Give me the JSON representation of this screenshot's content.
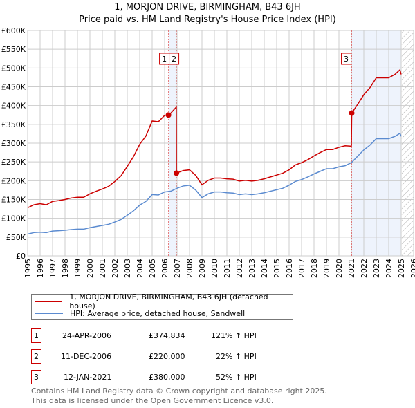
{
  "chart_data": {
    "type": "line",
    "title": "1, MORJON DRIVE, BIRMINGHAM, B43 6JH",
    "subtitle": "Price paid vs. HM Land Registry's House Price Index (HPI)",
    "xlabel": "",
    "ylabel": "",
    "xlim": [
      1995,
      2026
    ],
    "ylim": [
      0,
      600000
    ],
    "x_ticks": [
      "1995",
      "1996",
      "1997",
      "1998",
      "1999",
      "2000",
      "2001",
      "2002",
      "2003",
      "2004",
      "2005",
      "2006",
      "2007",
      "2008",
      "2009",
      "2010",
      "2011",
      "2012",
      "2013",
      "2014",
      "2015",
      "2016",
      "2017",
      "2018",
      "2019",
      "2020",
      "2021",
      "2022",
      "2023",
      "2024",
      "2025",
      "2026"
    ],
    "y_ticks": [
      {
        "v": 0,
        "label": "£0"
      },
      {
        "v": 50000,
        "label": "£50K"
      },
      {
        "v": 100000,
        "label": "£100K"
      },
      {
        "v": 150000,
        "label": "£150K"
      },
      {
        "v": 200000,
        "label": "£200K"
      },
      {
        "v": 250000,
        "label": "£250K"
      },
      {
        "v": 300000,
        "label": "£300K"
      },
      {
        "v": 350000,
        "label": "£350K"
      },
      {
        "v": 400000,
        "label": "£400K"
      },
      {
        "v": 450000,
        "label": "£450K"
      },
      {
        "v": 500000,
        "label": "£500K"
      },
      {
        "v": 550000,
        "label": "£550K"
      },
      {
        "v": 600000,
        "label": "£600K"
      }
    ],
    "grid": true,
    "shaded_ranges": [
      [
        2006.31,
        2006.95
      ],
      [
        2021.03,
        2025.0
      ]
    ],
    "hatched_from": 2025.05,
    "series": [
      {
        "name": "1, MORJON DRIVE, BIRMINGHAM, B43 6JH (detached house)",
        "color": "#cc0000",
        "x": [
          1995,
          1995.5,
          1996,
          1996.5,
          1997,
          1997.5,
          1998,
          1998.5,
          1999,
          1999.5,
          2000,
          2000.5,
          2001,
          2001.5,
          2002,
          2002.5,
          2003,
          2003.5,
          2004,
          2004.5,
          2005,
          2005.5,
          2006,
          2006.31,
          2006.5,
          2006.94,
          2006.95,
          2007.5,
          2008,
          2008.5,
          2009,
          2009.5,
          2010,
          2010.5,
          2011,
          2011.5,
          2012,
          2012.5,
          2013,
          2013.5,
          2014,
          2014.5,
          2015,
          2015.5,
          2016,
          2016.5,
          2017,
          2017.5,
          2018,
          2018.5,
          2019,
          2019.5,
          2020,
          2020.5,
          2021.0,
          2021.03,
          2021.5,
          2022,
          2022.5,
          2023,
          2023.5,
          2024,
          2024.5,
          2024.9,
          2025.0
        ],
        "y": [
          128,
          136,
          139,
          136,
          145,
          147,
          150,
          154,
          156,
          156,
          165,
          172,
          178,
          185,
          198,
          213,
          238,
          264,
          297,
          319,
          359,
          357,
          374,
          374.8,
          380,
          396,
          220,
          227,
          229,
          214,
          189,
          201,
          207,
          207,
          205,
          204,
          199,
          201,
          199,
          201,
          205,
          210,
          215,
          220,
          229,
          242,
          248,
          256,
          266,
          275,
          283,
          283,
          289,
          293,
          292,
          380,
          403,
          429,
          448,
          474,
          474,
          474,
          483,
          495,
          483
        ]
      },
      {
        "name": "HPI: Average price, detached house, Sandwell",
        "color": "#5b8bd0",
        "x": [
          1995,
          1995.5,
          1996,
          1996.5,
          1997,
          1997.5,
          1998,
          1998.5,
          1999,
          1999.5,
          2000,
          2000.5,
          2001,
          2001.5,
          2002,
          2002.5,
          2003,
          2003.5,
          2004,
          2004.5,
          2005,
          2005.5,
          2006,
          2006.5,
          2007,
          2007.5,
          2008,
          2008.5,
          2009,
          2009.5,
          2010,
          2010.5,
          2011,
          2011.5,
          2012,
          2012.5,
          2013,
          2013.5,
          2014,
          2014.5,
          2015,
          2015.5,
          2016,
          2016.5,
          2017,
          2017.5,
          2018,
          2018.5,
          2019,
          2019.5,
          2020,
          2020.5,
          2021,
          2021.5,
          2022,
          2022.5,
          2023,
          2023.5,
          2024,
          2024.5,
          2024.9,
          2025.0
        ],
        "y": [
          58,
          62,
          63,
          62,
          66,
          67,
          68,
          70,
          71,
          71,
          75,
          78,
          81,
          84,
          90,
          97,
          108,
          120,
          135,
          145,
          163,
          162,
          170,
          172,
          180,
          186,
          188,
          175,
          155,
          165,
          170,
          170,
          168,
          167,
          163,
          165,
          163,
          165,
          168,
          172,
          176,
          180,
          188,
          198,
          203,
          210,
          218,
          225,
          232,
          232,
          237,
          240,
          248,
          265,
          282,
          295,
          312,
          312,
          312,
          318,
          326,
          318
        ]
      }
    ],
    "y_unit": 1000,
    "sales": [
      {
        "id": "1",
        "x": 2006.31,
        "y": 374.834,
        "date": "24-APR-2006",
        "price": "£374,834",
        "hpi": "121% ↑ HPI"
      },
      {
        "id": "2",
        "x": 2006.95,
        "y": 220,
        "date": "11-DEC-2006",
        "price": "£220,000",
        "hpi": "22% ↑ HPI"
      },
      {
        "id": "3",
        "x": 2021.03,
        "y": 380,
        "date": "12-JAN-2021",
        "price": "£380,000",
        "hpi": "52% ↑ HPI"
      }
    ]
  },
  "footer": {
    "line1": "Contains HM Land Registry data © Crown copyright and database right 2025.",
    "line2": "This data is licensed under the Open Government Licence v3.0."
  }
}
